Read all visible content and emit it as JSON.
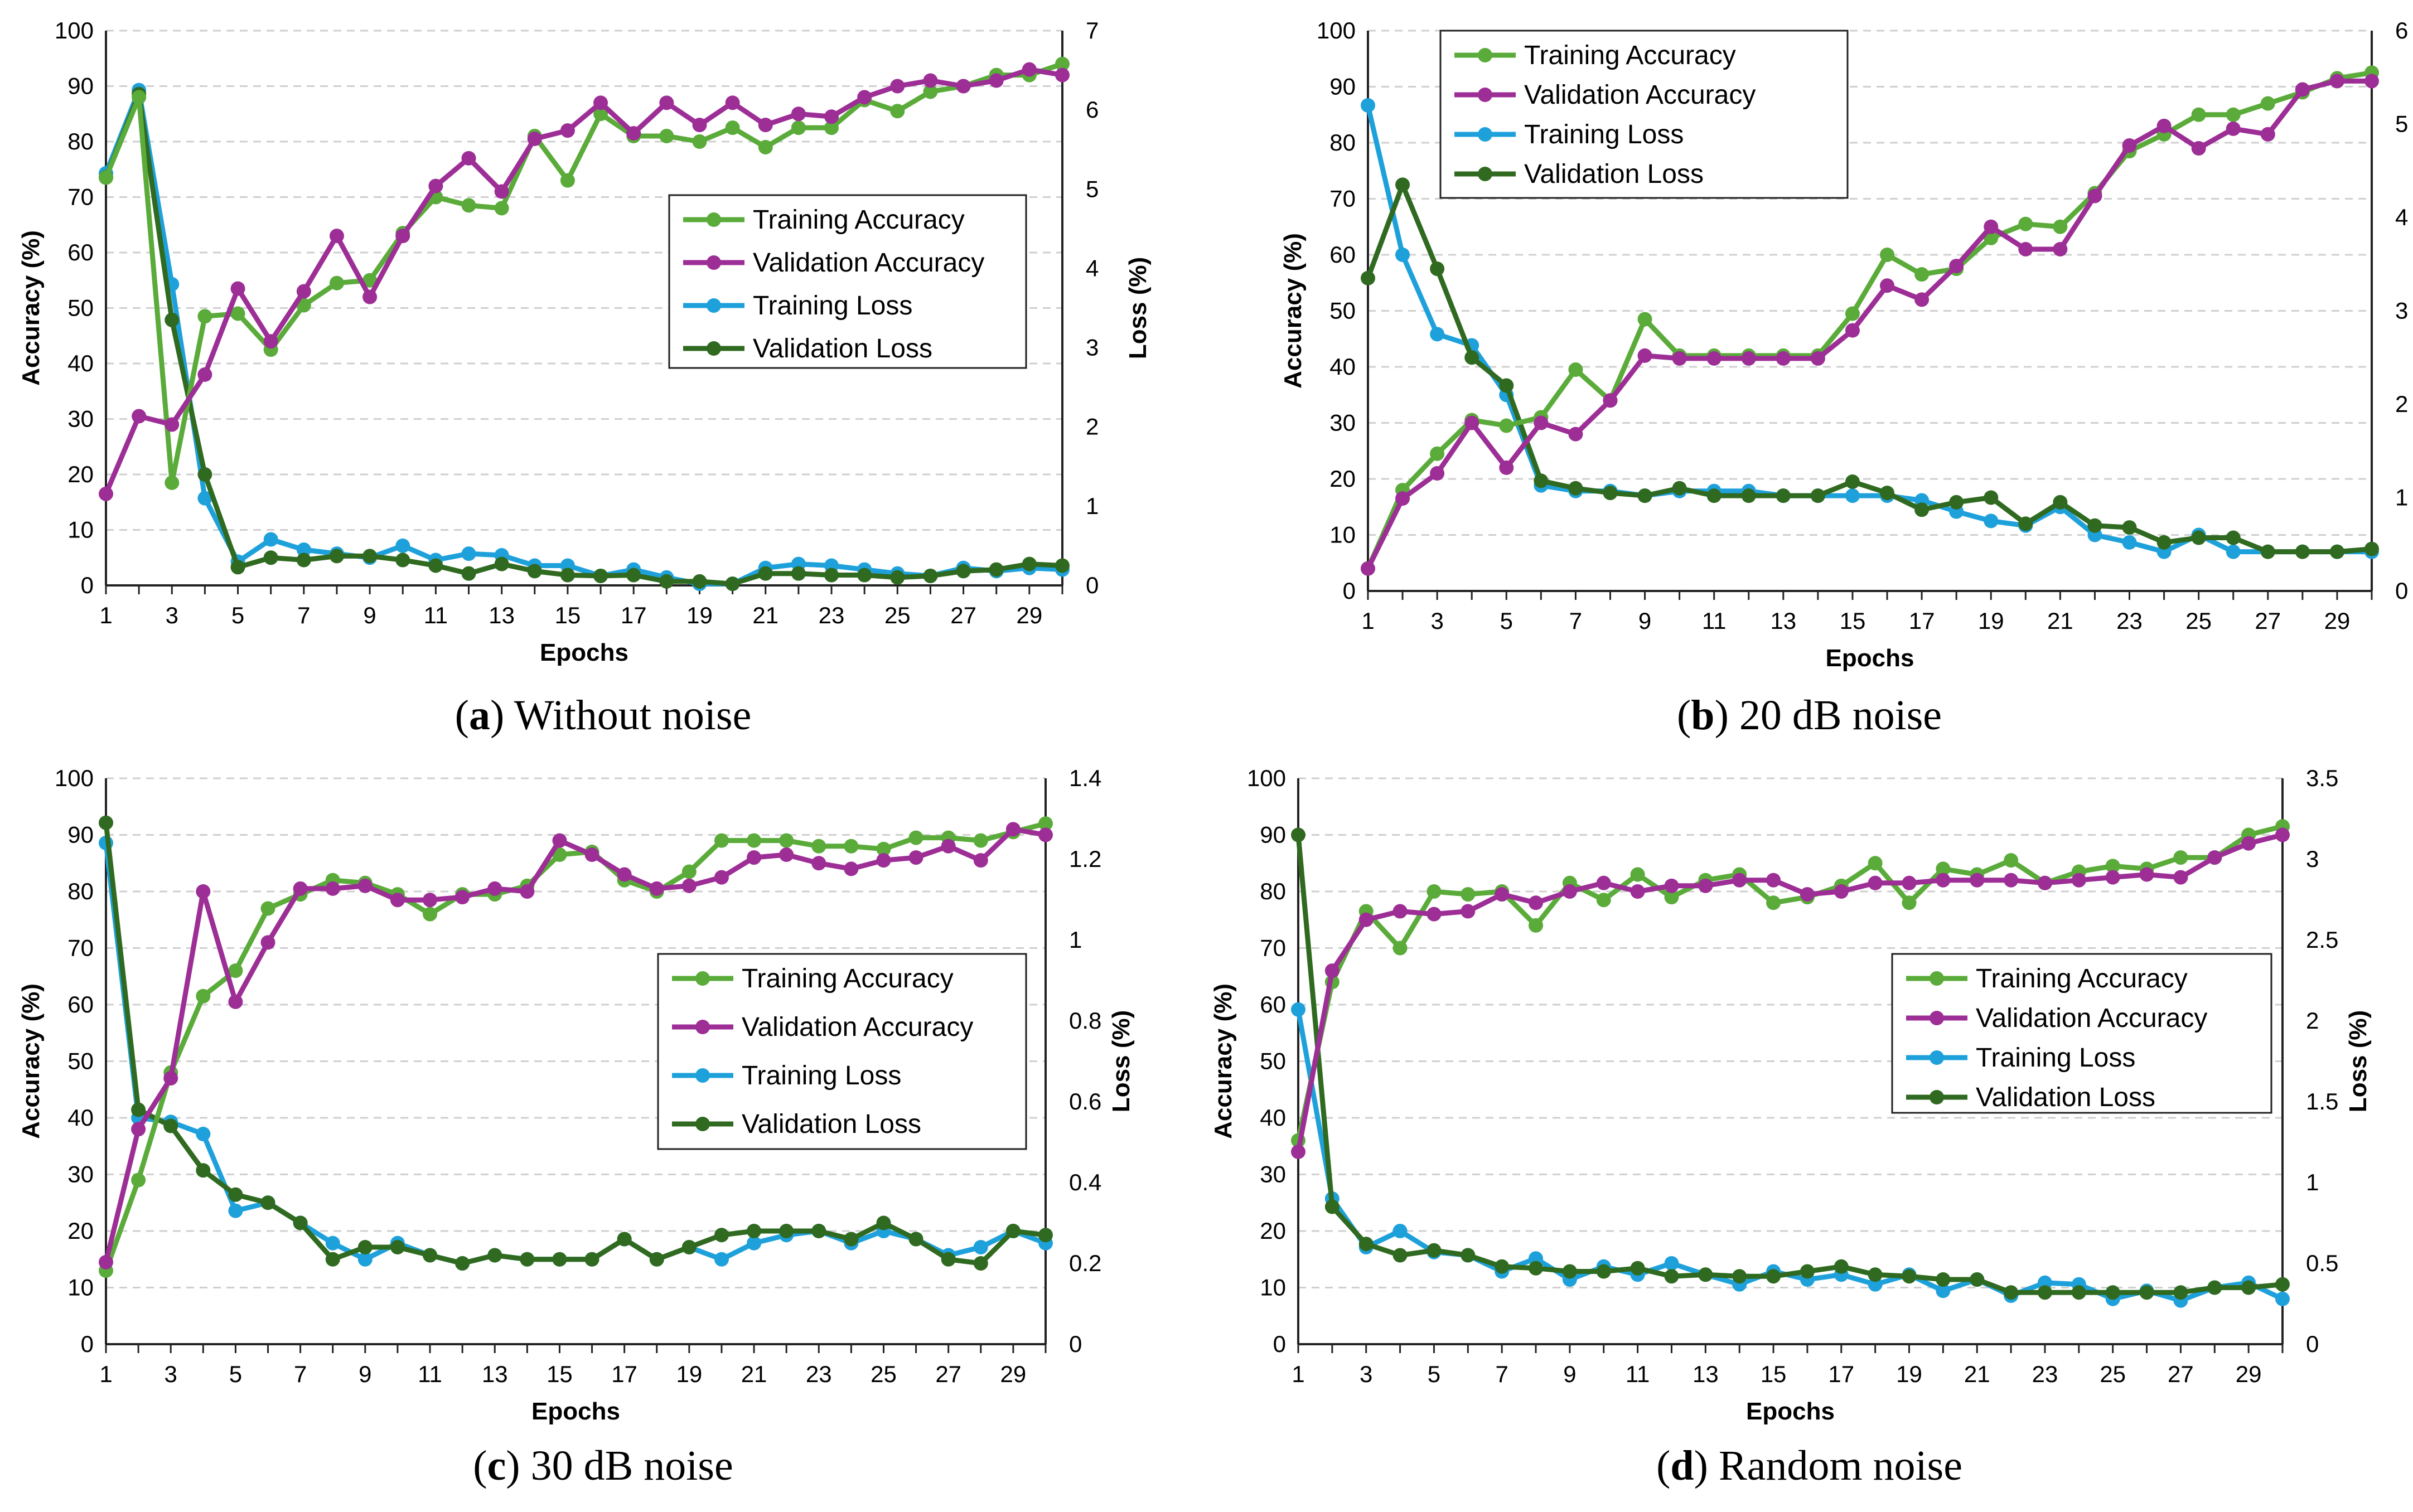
{
  "chart_data": [
    {
      "type": "line",
      "caption_letter": "a",
      "caption_text": "Without noise",
      "xlabel": "Epochs",
      "ylabel": "Accuracy (%)",
      "y2label": "Loss (%)",
      "ylim": [
        0,
        100
      ],
      "y2lim": [
        0,
        7
      ],
      "yticks": [
        "0",
        "10",
        "20",
        "30",
        "40",
        "50",
        "60",
        "70",
        "80",
        "90",
        "100"
      ],
      "y2ticks": [
        "0",
        "1",
        "2",
        "3",
        "4",
        "5",
        "6",
        "7"
      ],
      "xticks": [
        "1",
        "3",
        "5",
        "7",
        "9",
        "11",
        "13",
        "15",
        "17",
        "19",
        "21",
        "23",
        "25",
        "27",
        "29"
      ],
      "legend_position": "right-middle",
      "series": [
        {
          "name": "Training Accuracy",
          "axis": "left",
          "color": "#5aab3a",
          "values": [
            73.5,
            88,
            18.5,
            48.5,
            49,
            42.5,
            50.5,
            54.5,
            55,
            63.5,
            70,
            68.5,
            68,
            81,
            73,
            85,
            81,
            81,
            80,
            82.5,
            79,
            82.5,
            82.5,
            87.5,
            85.5,
            89,
            90,
            92,
            92,
            94
          ]
        },
        {
          "name": "Validation Accuracy",
          "axis": "left",
          "color": "#9c2e96",
          "values": [
            16.5,
            30.5,
            29,
            38,
            53.5,
            44,
            53,
            63,
            52,
            63,
            72,
            77,
            71,
            80.5,
            82,
            87,
            81.5,
            87,
            83,
            87,
            83,
            85,
            84.5,
            88,
            90,
            91,
            90,
            91,
            93,
            92
          ]
        },
        {
          "name": "Training Loss",
          "axis": "right",
          "color": "#1ea1db",
          "values": [
            5.2,
            6.25,
            3.8,
            1.1,
            0.3,
            0.58,
            0.45,
            0.4,
            0.35,
            0.5,
            0.32,
            0.4,
            0.38,
            0.25,
            0.25,
            0.12,
            0.2,
            0.1,
            0.02,
            0.02,
            0.22,
            0.27,
            0.25,
            0.2,
            0.15,
            0.12,
            0.22,
            0.18,
            0.22,
            0.2
          ]
        },
        {
          "name": "Validation Loss",
          "axis": "right",
          "color": "#2f6a20",
          "values": [
            5.15,
            6.2,
            3.35,
            1.4,
            0.23,
            0.35,
            0.32,
            0.37,
            0.37,
            0.32,
            0.25,
            0.15,
            0.27,
            0.18,
            0.13,
            0.12,
            0.13,
            0.05,
            0.05,
            0.02,
            0.15,
            0.15,
            0.13,
            0.13,
            0.1,
            0.12,
            0.18,
            0.2,
            0.27,
            0.25
          ]
        }
      ]
    },
    {
      "type": "line",
      "caption_letter": "b",
      "caption_text": "20 dB noise",
      "xlabel": "Epochs",
      "ylabel": "Accuracy (%)",
      "y2label": "Loss (%)",
      "ylim": [
        0,
        100
      ],
      "y2lim": [
        0,
        6
      ],
      "yticks": [
        "0",
        "10",
        "20",
        "30",
        "40",
        "50",
        "60",
        "70",
        "80",
        "90",
        "100"
      ],
      "y2ticks": [
        "0",
        "1",
        "2",
        "3",
        "4",
        "5",
        "6"
      ],
      "xticks": [
        "1",
        "3",
        "5",
        "7",
        "9",
        "11",
        "13",
        "15",
        "17",
        "19",
        "21",
        "23",
        "25",
        "27",
        "29"
      ],
      "legend_position": "top-left",
      "series": [
        {
          "name": "Training Accuracy",
          "axis": "left",
          "color": "#5aab3a",
          "values": [
            4,
            18,
            24.5,
            30.5,
            29.5,
            31,
            39.5,
            34,
            48.5,
            42,
            42,
            42,
            42,
            42,
            49.5,
            60,
            56.5,
            57.5,
            63,
            65.5,
            65,
            71,
            78.5,
            81.5,
            85,
            85,
            87,
            89,
            91.5,
            92.5
          ]
        },
        {
          "name": "Validation Accuracy",
          "axis": "left",
          "color": "#9c2e96",
          "values": [
            4,
            16.5,
            21,
            30,
            22,
            30,
            28,
            34,
            42,
            41.5,
            41.5,
            41.5,
            41.5,
            41.5,
            46.5,
            54.5,
            52,
            58,
            65,
            61,
            61,
            70.5,
            79.5,
            83,
            79,
            82.5,
            81.5,
            89.5,
            91,
            91
          ]
        },
        {
          "name": "Training Loss",
          "axis": "right",
          "color": "#1ea1db",
          "values": [
            5.2,
            3.6,
            2.75,
            2.63,
            2.1,
            1.13,
            1.07,
            1.07,
            1.02,
            1.07,
            1.07,
            1.07,
            1.02,
            1.02,
            1.02,
            1.02,
            0.97,
            0.85,
            0.75,
            0.7,
            0.9,
            0.6,
            0.52,
            0.42,
            0.6,
            0.42,
            0.42,
            0.42,
            0.42,
            0.42
          ]
        },
        {
          "name": "Validation Loss",
          "axis": "right",
          "color": "#2f6a20",
          "values": [
            3.35,
            4.35,
            3.45,
            2.5,
            2.2,
            1.18,
            1.1,
            1.05,
            1.02,
            1.1,
            1.02,
            1.02,
            1.02,
            1.02,
            1.17,
            1.05,
            0.87,
            0.95,
            1.0,
            0.72,
            0.95,
            0.7,
            0.68,
            0.52,
            0.57,
            0.57,
            0.42,
            0.42,
            0.42,
            0.45
          ]
        }
      ]
    },
    {
      "type": "line",
      "caption_letter": "c",
      "caption_text": "30 dB noise",
      "xlabel": "Epochs",
      "ylabel": "Accuracy (%)",
      "y2label": "Loss (%)",
      "ylim": [
        0,
        100
      ],
      "y2lim": [
        0,
        1.4
      ],
      "yticks": [
        "0",
        "10",
        "20",
        "30",
        "40",
        "50",
        "60",
        "70",
        "80",
        "90",
        "100"
      ],
      "y2ticks": [
        "0",
        "0.2",
        "0.4",
        "0.6",
        "0.8",
        "1",
        "1.2",
        "1.4"
      ],
      "xticks": [
        "1",
        "3",
        "5",
        "7",
        "9",
        "11",
        "13",
        "15",
        "17",
        "19",
        "21",
        "23",
        "25",
        "27",
        "29"
      ],
      "legend_position": "right-middle",
      "series": [
        {
          "name": "Training Accuracy",
          "axis": "left",
          "color": "#5aab3a",
          "values": [
            13,
            29,
            48,
            61.5,
            66,
            77,
            79.5,
            82,
            81.5,
            79.5,
            76,
            79.5,
            79.5,
            81,
            86.5,
            87,
            82,
            80,
            83.5,
            89,
            89,
            89,
            88,
            88,
            87.5,
            89.5,
            89.5,
            89,
            90.5,
            92
          ]
        },
        {
          "name": "Validation Accuracy",
          "axis": "left",
          "color": "#9c2e96",
          "values": [
            14.5,
            38,
            47,
            80,
            60.5,
            71,
            80.5,
            80.5,
            81,
            78.5,
            78.5,
            79,
            80.5,
            80,
            89,
            86.5,
            83,
            80.5,
            81,
            82.5,
            86,
            86.5,
            85,
            84,
            85.5,
            86,
            88,
            85.5,
            91,
            90
          ]
        },
        {
          "name": "Training Loss",
          "axis": "right",
          "color": "#1ea1db",
          "values": [
            1.24,
            0.56,
            0.55,
            0.52,
            0.33,
            0.35,
            0.3,
            0.25,
            0.21,
            0.25,
            0.22,
            0.2,
            0.22,
            0.21,
            0.21,
            0.21,
            0.26,
            0.21,
            0.24,
            0.21,
            0.25,
            0.27,
            0.28,
            0.25,
            0.28,
            0.26,
            0.22,
            0.24,
            0.28,
            0.25
          ]
        },
        {
          "name": "Validation Loss",
          "axis": "right",
          "color": "#2f6a20",
          "values": [
            1.29,
            0.58,
            0.54,
            0.43,
            0.37,
            0.35,
            0.3,
            0.21,
            0.24,
            0.24,
            0.22,
            0.2,
            0.22,
            0.21,
            0.21,
            0.21,
            0.26,
            0.21,
            0.24,
            0.27,
            0.28,
            0.28,
            0.28,
            0.26,
            0.3,
            0.26,
            0.21,
            0.2,
            0.28,
            0.27
          ]
        }
      ]
    },
    {
      "type": "line",
      "caption_letter": "d",
      "caption_text": "Random noise",
      "xlabel": "Epochs",
      "ylabel": "Accuracy (%)",
      "y2label": "Loss (%)",
      "ylim": [
        0,
        100
      ],
      "y2lim": [
        0,
        3.5
      ],
      "yticks": [
        "0",
        "10",
        "20",
        "30",
        "40",
        "50",
        "60",
        "70",
        "80",
        "90",
        "100"
      ],
      "y2ticks": [
        "0",
        "0.5",
        "1",
        "1.5",
        "2",
        "2.5",
        "3",
        "3.5"
      ],
      "xticks": [
        "1",
        "3",
        "5",
        "7",
        "9",
        "11",
        "13",
        "15",
        "17",
        "19",
        "21",
        "23",
        "25",
        "27",
        "29"
      ],
      "legend_position": "right-middle",
      "series": [
        {
          "name": "Training Accuracy",
          "axis": "left",
          "color": "#5aab3a",
          "values": [
            36,
            64,
            76.5,
            70,
            80,
            79.5,
            80,
            74,
            81.5,
            78.5,
            83,
            79,
            82,
            83,
            78,
            79,
            81,
            85,
            78,
            84,
            83,
            85.5,
            81.5,
            83.5,
            84.5,
            84,
            86,
            86,
            90,
            91.5
          ]
        },
        {
          "name": "Validation Accuracy",
          "axis": "left",
          "color": "#9c2e96",
          "values": [
            34,
            66,
            75,
            76.5,
            76,
            76.5,
            79.5,
            78,
            80,
            81.5,
            80,
            81,
            81,
            82,
            82,
            79.5,
            80,
            81.5,
            81.5,
            82,
            82,
            82,
            81.5,
            82,
            82.5,
            83,
            82.5,
            86,
            88.5,
            90
          ]
        },
        {
          "name": "Training Loss",
          "axis": "right",
          "color": "#1ea1db",
          "values": [
            2.07,
            0.9,
            0.6,
            0.7,
            0.57,
            0.55,
            0.45,
            0.53,
            0.4,
            0.48,
            0.43,
            0.5,
            0.43,
            0.37,
            0.45,
            0.4,
            0.43,
            0.37,
            0.43,
            0.33,
            0.4,
            0.3,
            0.38,
            0.37,
            0.28,
            0.33,
            0.27,
            0.35,
            0.38,
            0.28
          ]
        },
        {
          "name": "Validation Loss",
          "axis": "right",
          "color": "#2f6a20",
          "values": [
            3.15,
            0.85,
            0.62,
            0.55,
            0.58,
            0.55,
            0.48,
            0.47,
            0.45,
            0.45,
            0.47,
            0.42,
            0.43,
            0.42,
            0.42,
            0.45,
            0.48,
            0.43,
            0.42,
            0.4,
            0.4,
            0.32,
            0.32,
            0.32,
            0.32,
            0.32,
            0.32,
            0.35,
            0.35,
            0.37
          ]
        }
      ]
    }
  ]
}
